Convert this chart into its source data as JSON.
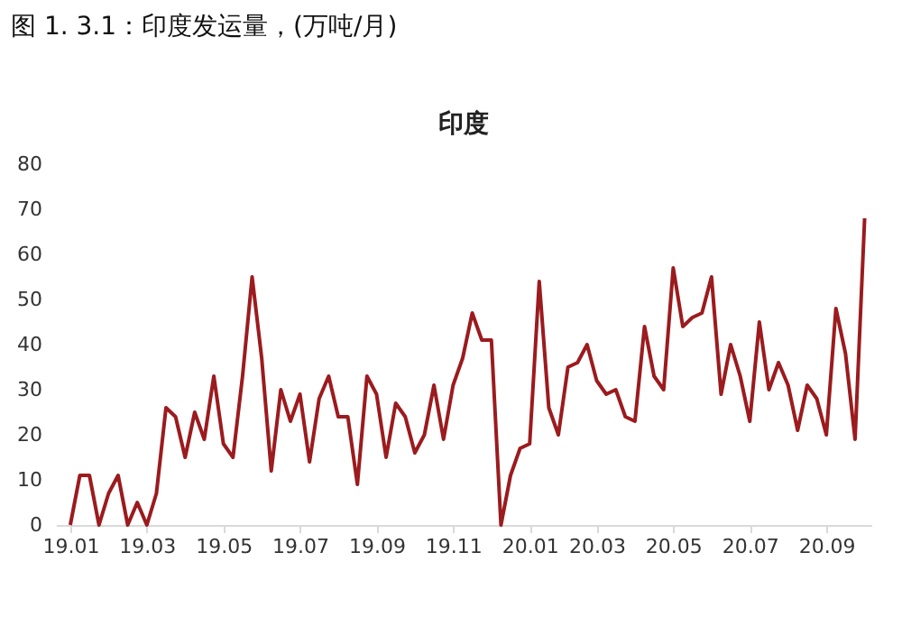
{
  "chart_data": {
    "type": "line",
    "title": "图 1. 3.1：印度发运量，(万吨/月)",
    "subtitle": "印度",
    "categories": [
      "19.01",
      null,
      null,
      null,
      null,
      null,
      null,
      null,
      "19.03",
      null,
      null,
      null,
      null,
      null,
      null,
      null,
      "19.05",
      null,
      null,
      null,
      null,
      null,
      null,
      null,
      "19.07",
      null,
      null,
      null,
      null,
      null,
      null,
      null,
      "19.09",
      null,
      null,
      null,
      null,
      null,
      null,
      null,
      "19.11",
      null,
      null,
      null,
      null,
      null,
      null,
      null,
      "20.01",
      null,
      null,
      null,
      null,
      null,
      null,
      "20.03",
      null,
      null,
      null,
      null,
      null,
      null,
      null,
      "20.05",
      null,
      null,
      null,
      null,
      null,
      null,
      null,
      "20.07",
      null,
      null,
      null,
      null,
      null,
      null,
      null,
      "20.09",
      null,
      null,
      null,
      null
    ],
    "series": [
      {
        "color": "#9b1b1e",
        "values": [
          0,
          11,
          11,
          0,
          7,
          11,
          0,
          5,
          0,
          7,
          26,
          24,
          15,
          25,
          19,
          33,
          18,
          15,
          33,
          55,
          37,
          12,
          30,
          23,
          29,
          14,
          28,
          33,
          24,
          24,
          9,
          33,
          29,
          15,
          27,
          24,
          16,
          20,
          31,
          19,
          31,
          37,
          47,
          41,
          41,
          0,
          11,
          17,
          18,
          54,
          26,
          20,
          35,
          36,
          40,
          32,
          29,
          30,
          24,
          23,
          44,
          33,
          30,
          57,
          44,
          46,
          47,
          55,
          29,
          40,
          33,
          23,
          45,
          30,
          36,
          31,
          21,
          31,
          28,
          20,
          48,
          38,
          19,
          68
        ]
      }
    ],
    "ylim": [
      0,
      80
    ],
    "yticks": [
      0,
      10,
      20,
      30,
      40,
      50,
      60,
      70,
      80
    ],
    "grid": false,
    "legend": false,
    "marker": "none",
    "line_style": "solid"
  }
}
